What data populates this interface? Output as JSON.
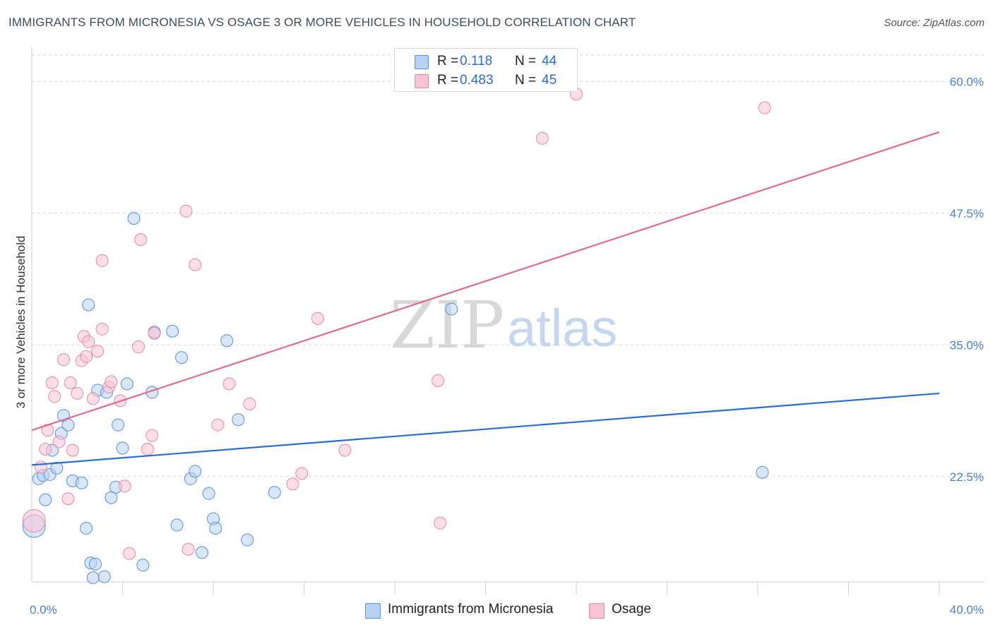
{
  "header": {
    "title": "IMMIGRANTS FROM MICRONESIA VS OSAGE 3 OR MORE VEHICLES IN HOUSEHOLD CORRELATION CHART",
    "source": "Source: ZipAtlas.com"
  },
  "watermark": {
    "zip": "ZIP",
    "atlas": "atlas"
  },
  "colors": {
    "blue_fill": "#b9d2f3",
    "blue_stroke": "#5b8fd6",
    "blue_line": "#2a6fd0",
    "pink_fill": "#f8c3d3",
    "pink_stroke": "#e48aa8",
    "pink_line": "#e06a92",
    "tick_color": "#4a7fd0"
  },
  "legend_top": {
    "rows": [
      {
        "r_label": "R =",
        "r_value": "0.118",
        "n_label": "N =",
        "n_value": "44"
      },
      {
        "r_label": "R =",
        "r_value": "0.483",
        "n_label": "N =",
        "n_value": "45"
      }
    ]
  },
  "legend_bottom": {
    "items": [
      {
        "label": "Immigrants from Micronesia"
      },
      {
        "label": "Osage"
      }
    ]
  },
  "chart_data": {
    "type": "scatter",
    "title": "IMMIGRANTS FROM MICRONESIA VS OSAGE 3 OR MORE VEHICLES IN HOUSEHOLD CORRELATION CHART",
    "xlabel": "",
    "ylabel": "3 or more Vehicles in Household",
    "xlim": [
      0,
      40
    ],
    "ylim": [
      12.5,
      62.5
    ],
    "x_tick_labels": [
      {
        "value": 0,
        "label": "0.0%"
      },
      {
        "value": 40,
        "label": "40.0%"
      }
    ],
    "y_tick_labels": [
      {
        "value": 22.5,
        "label": "22.5%"
      },
      {
        "value": 35.0,
        "label": "35.0%"
      },
      {
        "value": 47.5,
        "label": "47.5%"
      },
      {
        "value": 60.0,
        "label": "60.0%"
      }
    ],
    "x_minor_ticks": [
      4,
      8,
      12,
      16,
      20,
      24,
      28,
      32,
      36,
      40
    ],
    "series": [
      {
        "name": "Immigrants from Micronesia",
        "color": "blue",
        "trend": {
          "x": [
            0,
            40
          ],
          "y": [
            23.6,
            30.4
          ]
        },
        "points": [
          [
            0.1,
            17.8
          ],
          [
            0.3,
            22.3
          ],
          [
            0.5,
            22.6
          ],
          [
            0.6,
            20.3
          ],
          [
            0.8,
            22.7
          ],
          [
            0.9,
            25.0
          ],
          [
            1.1,
            23.3
          ],
          [
            1.3,
            26.6
          ],
          [
            1.4,
            28.3
          ],
          [
            1.6,
            27.4
          ],
          [
            1.8,
            22.1
          ],
          [
            2.2,
            21.9
          ],
          [
            2.4,
            17.6
          ],
          [
            2.5,
            38.8
          ],
          [
            2.6,
            14.3
          ],
          [
            2.7,
            12.9
          ],
          [
            2.8,
            14.2
          ],
          [
            2.9,
            30.7
          ],
          [
            3.2,
            13.0
          ],
          [
            3.3,
            30.5
          ],
          [
            3.5,
            20.5
          ],
          [
            3.7,
            21.5
          ],
          [
            3.8,
            27.4
          ],
          [
            4.0,
            25.2
          ],
          [
            4.2,
            31.3
          ],
          [
            4.5,
            47.0
          ],
          [
            4.9,
            14.1
          ],
          [
            5.3,
            30.5
          ],
          [
            5.4,
            36.2
          ],
          [
            6.2,
            36.3
          ],
          [
            6.4,
            17.9
          ],
          [
            6.6,
            33.8
          ],
          [
            7.0,
            22.3
          ],
          [
            7.2,
            23.0
          ],
          [
            7.5,
            15.3
          ],
          [
            7.8,
            20.9
          ],
          [
            8.0,
            18.5
          ],
          [
            8.1,
            17.6
          ],
          [
            8.6,
            35.4
          ],
          [
            9.1,
            27.9
          ],
          [
            9.5,
            16.5
          ],
          [
            10.7,
            21.0
          ],
          [
            18.5,
            38.4
          ],
          [
            32.2,
            22.9
          ]
        ]
      },
      {
        "name": "Osage",
        "color": "pink",
        "trend": {
          "x": [
            0,
            40
          ],
          "y": [
            26.9,
            55.2
          ]
        },
        "points": [
          [
            0.1,
            18.3
          ],
          [
            0.4,
            23.4
          ],
          [
            0.6,
            25.1
          ],
          [
            0.7,
            26.9
          ],
          [
            0.9,
            31.4
          ],
          [
            1.0,
            30.1
          ],
          [
            1.2,
            25.8
          ],
          [
            1.4,
            33.6
          ],
          [
            1.6,
            20.4
          ],
          [
            1.7,
            31.4
          ],
          [
            1.8,
            25.0
          ],
          [
            2.0,
            30.4
          ],
          [
            2.2,
            33.5
          ],
          [
            2.3,
            35.8
          ],
          [
            2.4,
            33.9
          ],
          [
            2.5,
            35.3
          ],
          [
            2.7,
            29.9
          ],
          [
            2.9,
            34.4
          ],
          [
            3.1,
            36.5
          ],
          [
            3.1,
            43.0
          ],
          [
            3.4,
            31.0
          ],
          [
            3.5,
            31.5
          ],
          [
            3.9,
            29.7
          ],
          [
            4.1,
            21.6
          ],
          [
            4.3,
            15.2
          ],
          [
            4.7,
            34.8
          ],
          [
            4.8,
            45.0
          ],
          [
            5.1,
            25.1
          ],
          [
            5.3,
            26.4
          ],
          [
            5.4,
            36.1
          ],
          [
            6.8,
            47.7
          ],
          [
            6.9,
            15.6
          ],
          [
            7.2,
            42.6
          ],
          [
            8.2,
            27.4
          ],
          [
            8.7,
            31.3
          ],
          [
            9.6,
            29.4
          ],
          [
            11.5,
            21.8
          ],
          [
            11.9,
            22.8
          ],
          [
            12.6,
            37.5
          ],
          [
            13.8,
            25.0
          ],
          [
            17.9,
            31.6
          ],
          [
            18.0,
            18.1
          ],
          [
            22.5,
            54.6
          ],
          [
            24.0,
            58.8
          ],
          [
            32.3,
            57.5
          ]
        ]
      }
    ]
  }
}
